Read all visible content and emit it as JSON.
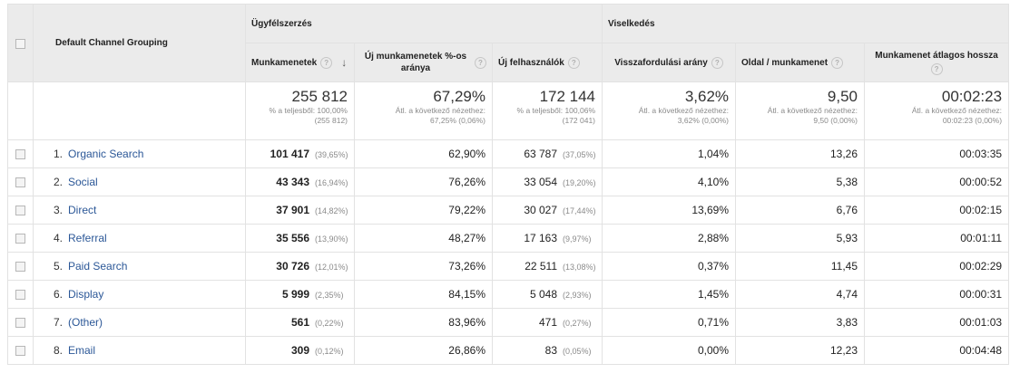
{
  "header": {
    "dimension": "Default Channel Grouping",
    "group_acquisition": "Ügyfélszerzés",
    "group_behavior": "Viselkedés",
    "columns": [
      {
        "label": "Munkamenetek",
        "help": "?"
      },
      {
        "label": "Új munkamenetek %-os aránya",
        "help": "?"
      },
      {
        "label": "Új felhasználók",
        "help": "?"
      },
      {
        "label": "Visszafordulási arány",
        "help": "?"
      },
      {
        "label": "Oldal / munkamenet",
        "help": "?"
      },
      {
        "label": "Munkamenet átlagos hossza",
        "help": "?"
      }
    ],
    "sort_arrow": "↓"
  },
  "totals": [
    {
      "value": "255 812",
      "sub1": "% a teljesből: 100,00%",
      "sub2": "(255 812)"
    },
    {
      "value": "67,29%",
      "sub1": "Átl. a következő nézethez:",
      "sub2": "67,25% (0,06%)"
    },
    {
      "value": "172 144",
      "sub1": "% a teljesből: 100,06%",
      "sub2": "(172 041)"
    },
    {
      "value": "3,62%",
      "sub1": "Átl. a következő nézethez:",
      "sub2": "3,62% (0,00%)"
    },
    {
      "value": "9,50",
      "sub1": "Átl. a következő nézethez:",
      "sub2": "9,50 (0,00%)"
    },
    {
      "value": "00:02:23",
      "sub1": "Átl. a következő nézethez:",
      "sub2": "00:02:23 (0,00%)"
    }
  ],
  "rows": [
    {
      "rank": "1.",
      "channel": "Organic Search",
      "sessions": "101 417",
      "sessions_pct": "(39,65%)",
      "new_sessions": "62,90%",
      "new_users": "63 787",
      "new_users_pct": "(37,05%)",
      "bounce": "1,04%",
      "pages": "13,26",
      "duration": "00:03:35"
    },
    {
      "rank": "2.",
      "channel": "Social",
      "sessions": "43 343",
      "sessions_pct": "(16,94%)",
      "new_sessions": "76,26%",
      "new_users": "33 054",
      "new_users_pct": "(19,20%)",
      "bounce": "4,10%",
      "pages": "5,38",
      "duration": "00:00:52"
    },
    {
      "rank": "3.",
      "channel": "Direct",
      "sessions": "37 901",
      "sessions_pct": "(14,82%)",
      "new_sessions": "79,22%",
      "new_users": "30 027",
      "new_users_pct": "(17,44%)",
      "bounce": "13,69%",
      "pages": "6,76",
      "duration": "00:02:15"
    },
    {
      "rank": "4.",
      "channel": "Referral",
      "sessions": "35 556",
      "sessions_pct": "(13,90%)",
      "new_sessions": "48,27%",
      "new_users": "17 163",
      "new_users_pct": "(9,97%)",
      "bounce": "2,88%",
      "pages": "5,93",
      "duration": "00:01:11"
    },
    {
      "rank": "5.",
      "channel": "Paid Search",
      "sessions": "30 726",
      "sessions_pct": "(12,01%)",
      "new_sessions": "73,26%",
      "new_users": "22 511",
      "new_users_pct": "(13,08%)",
      "bounce": "0,37%",
      "pages": "11,45",
      "duration": "00:02:29"
    },
    {
      "rank": "6.",
      "channel": "Display",
      "sessions": "5 999",
      "sessions_pct": "(2,35%)",
      "new_sessions": "84,15%",
      "new_users": "5 048",
      "new_users_pct": "(2,93%)",
      "bounce": "1,45%",
      "pages": "4,74",
      "duration": "00:00:31"
    },
    {
      "rank": "7.",
      "channel": "(Other)",
      "sessions": "561",
      "sessions_pct": "(0,22%)",
      "new_sessions": "83,96%",
      "new_users": "471",
      "new_users_pct": "(0,27%)",
      "bounce": "0,71%",
      "pages": "3,83",
      "duration": "00:01:03"
    },
    {
      "rank": "8.",
      "channel": "Email",
      "sessions": "309",
      "sessions_pct": "(0,12%)",
      "new_sessions": "26,86%",
      "new_users": "83",
      "new_users_pct": "(0,05%)",
      "bounce": "0,00%",
      "pages": "12,23",
      "duration": "00:04:48"
    }
  ],
  "colors": {
    "link": "#2b5797",
    "header_bg": "#ebebeb",
    "border": "#e2e2e2"
  }
}
